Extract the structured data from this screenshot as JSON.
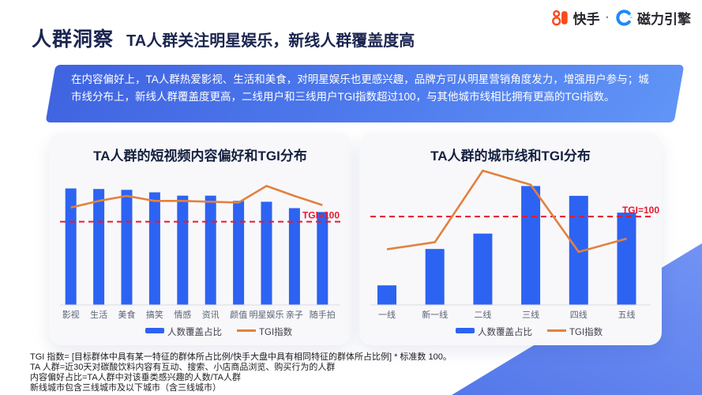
{
  "page": {
    "section_label": "人群洞察",
    "title": "TA人群关注明星娱乐，新线人群覆盖度高"
  },
  "header_logos": {
    "kuaishou_label": "快手",
    "separator": "·",
    "engine_label": "磁力引擎"
  },
  "summary_banner": {
    "text": "在内容偏好上，TA人群热爱影视、生活和美食，对明星娱乐也更感兴趣，品牌方可从明星营销角度发力，增强用户参与；城市线分布上，新线人群覆盖度更高，二线用户和三线用户TGI指数超过100，与其他城市线相比拥有更高的TGI指数。"
  },
  "colors": {
    "bar_blue": "#2D63F2",
    "line_orange": "#E2813F",
    "ref_red": "#E8192C",
    "banner_blue_start": "#3F63E0",
    "banner_blue_end": "#6195F6",
    "accent_shape_blue": "#5F81EC",
    "title_navy": "#1B2550",
    "kuaishou_orange": "#FA4B1E",
    "engine_blue": "#1E88F7"
  },
  "chart_data": [
    {
      "type": "bar",
      "title": "TA人群的短视频内容偏好和TGI分布",
      "categories": [
        "影视",
        "生活",
        "美食",
        "搞笑",
        "情感",
        "资讯",
        "颜值",
        "明星娱乐",
        "亲子",
        "随手拍"
      ],
      "series": [
        {
          "name": "人数覆盖占比",
          "type": "bar",
          "values": [
            42,
            41.8,
            41.5,
            40.6,
            39.4,
            39.4,
            37.5,
            37.2,
            34.9,
            33.5
          ]
        },
        {
          "name": "TGI指数",
          "type": "line",
          "values": [
            117,
            125,
            131,
            125,
            125,
            124,
            123,
            143,
            131,
            120
          ]
        }
      ],
      "ylim_bar": [
        0,
        45
      ],
      "ylim_tgi": [
        0,
        150
      ],
      "ref_line": {
        "label": "TGI=100",
        "value": 100
      },
      "xlabel": "",
      "ylabel": "",
      "grid": false,
      "legend_position": "bottom"
    },
    {
      "type": "bar",
      "title": "TA人群的城市线和TGI分布",
      "categories": [
        "一线",
        "新一线",
        "二线",
        "三线",
        "四线",
        "五线"
      ],
      "series": [
        {
          "name": "人数覆盖占比",
          "type": "bar",
          "values": [
            7,
            20,
            25.5,
            42.5,
            39,
            33
          ]
        },
        {
          "name": "TGI指数",
          "type": "line",
          "values": [
            63,
            71,
            152,
            136,
            60,
            75
          ]
        }
      ],
      "ylim_bar": [
        0,
        48
      ],
      "ylim_tgi": [
        0,
        152
      ],
      "ref_line": {
        "label": "TGI=100",
        "value": 100
      },
      "xlabel": "",
      "ylabel": "",
      "grid": false,
      "legend_position": "bottom"
    }
  ],
  "footnotes": [
    "TGI 指数= [目标群体中具有某一特征的群体所占比例/快手大盘中具有相同特征的群体所占比例] * 标准数 100。",
    "TA 人群=近30天对碳酸饮料内容有互动、搜索、小店商品浏览、购买行为的人群",
    "内容偏好占比=TA人群中对该垂类感兴趣的人数/TA人群",
    "新线城市包含三线城市及以下城市（含三线城市）"
  ]
}
